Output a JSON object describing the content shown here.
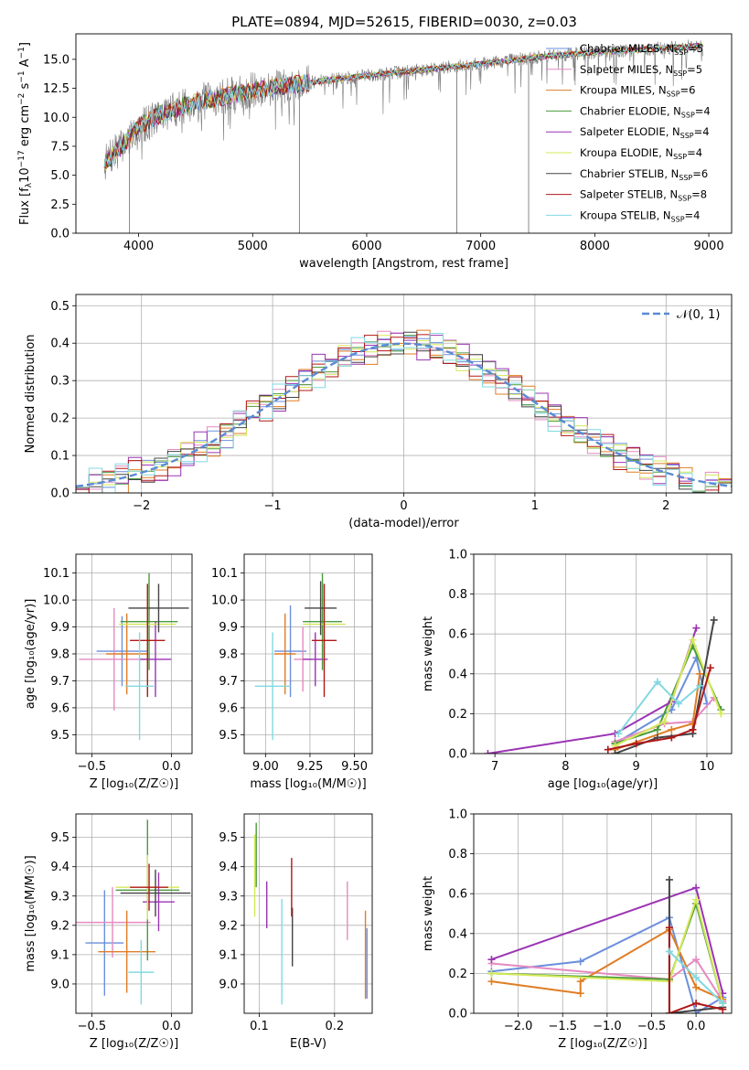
{
  "title": "PLATE=0894, MJD=52615, FIBERID=0030, z=0.03",
  "colors": {
    "Chabrier MILES": "#6a8fdc",
    "Salpeter MILES": "#e58ac0",
    "Kroupa MILES": "#e07d24",
    "Chabrier ELODIE": "#4c9a3c",
    "Salpeter ELODIE": "#9c34b4",
    "Kroupa ELODIE": "#d4e85a",
    "Chabrier STELIB": "#444444",
    "Salpeter STELIB": "#b01818",
    "Kroupa STELIB": "#82d8e0",
    "data": "#7a7a7a",
    "normal": "#5a8ad4",
    "grid": "#b0b0b0"
  },
  "chart_data": [
    {
      "id": "spectrum",
      "type": "line",
      "xlabel": "wavelength [Angstrom, rest frame]",
      "ylabel_pre": "Flux [f",
      "ylabel_sub": "λ",
      "ylabel_mid": "10",
      "ylabel_sup": "−17",
      "ylabel_post": " erg cm",
      "ylabel_sup2": "−2",
      "ylabel_post2": " s",
      "ylabel_sup3": "−1",
      "ylabel_post3": " A",
      "ylabel_sup4": "−1",
      "ylabel_end": "]",
      "xlim": [
        3450,
        9200
      ],
      "ylim": [
        0,
        17.2
      ],
      "xticks": [
        4000,
        5000,
        6000,
        7000,
        8000,
        9000
      ],
      "yticks": [
        0.0,
        2.5,
        5.0,
        7.5,
        10.0,
        12.5,
        15.0
      ],
      "legend_position": "upper right",
      "legend": [
        {
          "model": "Chabrier MILES",
          "n": "5"
        },
        {
          "model": "Salpeter MILES",
          "n": "5"
        },
        {
          "model": "Kroupa MILES",
          "n": "6"
        },
        {
          "model": "Chabrier ELODIE",
          "n": "4"
        },
        {
          "model": "Salpeter ELODIE",
          "n": "4"
        },
        {
          "model": "Kroupa ELODIE",
          "n": "4"
        },
        {
          "model": "Chabrier STELIB",
          "n": "6"
        },
        {
          "model": "Salpeter STELIB",
          "n": "8"
        },
        {
          "model": "Kroupa STELIB",
          "n": "4"
        }
      ],
      "legend_nssp_label": "N",
      "legend_nssp_sub": "SSP",
      "continuum": [
        [
          3700,
          6.0
        ],
        [
          3850,
          7.5
        ],
        [
          4000,
          9.2
        ],
        [
          4200,
          10.3
        ],
        [
          4500,
          11.3
        ],
        [
          5000,
          12.3
        ],
        [
          5500,
          13.0
        ],
        [
          6000,
          13.6
        ],
        [
          6500,
          14.1
        ],
        [
          7000,
          14.6
        ],
        [
          7500,
          15.2
        ],
        [
          8000,
          15.6
        ],
        [
          8500,
          15.9
        ],
        [
          8950,
          16.2
        ]
      ],
      "spikes_down": [
        [
          3920,
          0.0
        ],
        [
          5410,
          0.0
        ],
        [
          6790,
          0.0
        ],
        [
          7420,
          0.0
        ]
      ]
    },
    {
      "id": "residuals",
      "type": "histogram",
      "xlabel": "(data-model)/error",
      "ylabel": "Normed distribution",
      "xlim": [
        -2.5,
        2.5
      ],
      "ylim": [
        0,
        0.53
      ],
      "xticks": [
        -2,
        -1,
        0,
        1,
        2
      ],
      "xtick_labels": [
        "−2",
        "−1",
        "0",
        "1",
        "2"
      ],
      "yticks": [
        0.0,
        0.1,
        0.2,
        0.3,
        0.4,
        0.5
      ],
      "bin_width": 0.1,
      "normal_label": "𝒩(0, 1)",
      "legend_position": "upper right",
      "series": [
        {
          "model": "Chabrier MILES",
          "jitter": 0.9
        },
        {
          "model": "Salpeter MILES",
          "jitter": 1.1
        },
        {
          "model": "Kroupa MILES",
          "jitter": 1.3
        },
        {
          "model": "Chabrier ELODIE",
          "jitter": 0.8
        },
        {
          "model": "Salpeter ELODIE",
          "jitter": 1.4
        },
        {
          "model": "Kroupa ELODIE",
          "jitter": 1.0
        },
        {
          "model": "Chabrier STELIB",
          "jitter": 0.9
        },
        {
          "model": "Salpeter STELIB",
          "jitter": 1.2
        },
        {
          "model": "Kroupa STELIB",
          "jitter": 1.2
        }
      ]
    },
    {
      "id": "z-age",
      "type": "errorbar",
      "xlabel": "Z [log₁₀(Z/Z☉)]",
      "ylabel": "age  [log₁₀(age/yr)]",
      "xlim": [
        -0.6,
        0.13
      ],
      "ylim": [
        9.43,
        10.17
      ],
      "xticks": [
        -0.5,
        0.0
      ],
      "xtick_labels": [
        "−0.5",
        "0.0"
      ],
      "yticks": [
        9.5,
        9.6,
        9.7,
        9.8,
        9.9,
        10.0,
        10.1
      ],
      "points": [
        {
          "model": "Chabrier MILES",
          "x": -0.31,
          "xerr": 0.16,
          "y": 9.81,
          "yerr": 0.13
        },
        {
          "model": "Salpeter MILES",
          "x": -0.36,
          "xerr": 0.22,
          "y": 9.78,
          "yerr": 0.19
        },
        {
          "model": "Kroupa MILES",
          "x": -0.28,
          "xerr": 0.13,
          "y": 9.8,
          "yerr": 0.15
        },
        {
          "model": "Chabrier ELODIE",
          "x": -0.14,
          "xerr": 0.18,
          "y": 9.92,
          "yerr": 0.18
        },
        {
          "model": "Salpeter ELODIE",
          "x": -0.1,
          "xerr": 0.1,
          "y": 9.78,
          "yerr": 0.14
        },
        {
          "model": "Kroupa ELODIE",
          "x": -0.15,
          "xerr": 0.18,
          "y": 9.91,
          "yerr": 0.15
        },
        {
          "model": "Chabrier STELIB",
          "x": -0.08,
          "xerr": 0.19,
          "y": 9.97,
          "yerr": 0.09
        },
        {
          "model": "Salpeter STELIB",
          "x": -0.15,
          "xerr": 0.11,
          "y": 9.85,
          "yerr": 0.21
        },
        {
          "model": "Kroupa STELIB",
          "x": -0.2,
          "xerr": 0.09,
          "y": 9.68,
          "yerr": 0.2
        }
      ]
    },
    {
      "id": "mass-age",
      "type": "errorbar",
      "xlabel": "mass [log₁₀(M/M☉)]",
      "ylabel": "",
      "xlim": [
        8.88,
        9.6
      ],
      "ylim": [
        9.43,
        10.17
      ],
      "xticks": [
        9.0,
        9.25,
        9.5
      ],
      "xtick_labels": [
        "9.00",
        "9.25",
        "9.50"
      ],
      "yticks": [
        9.5,
        9.6,
        9.7,
        9.8,
        9.9,
        10.0,
        10.1
      ],
      "points": [
        {
          "model": "Chabrier MILES",
          "x": 9.14,
          "xerr": 0.09,
          "y": 9.81,
          "yerr": 0.17
        },
        {
          "model": "Salpeter MILES",
          "x": 9.21,
          "xerr": 0.05,
          "y": 9.78,
          "yerr": 0.12
        },
        {
          "model": "Kroupa MILES",
          "x": 9.11,
          "xerr": 0.06,
          "y": 9.8,
          "yerr": 0.15
        },
        {
          "model": "Chabrier ELODIE",
          "x": 9.32,
          "xerr": 0.11,
          "y": 9.92,
          "yerr": 0.18
        },
        {
          "model": "Salpeter ELODIE",
          "x": 9.28,
          "xerr": 0.07,
          "y": 9.78,
          "yerr": 0.1
        },
        {
          "model": "Kroupa ELODIE",
          "x": 9.33,
          "xerr": 0.12,
          "y": 9.91,
          "yerr": 0.15
        },
        {
          "model": "Chabrier STELIB",
          "x": 9.31,
          "xerr": 0.09,
          "y": 9.97,
          "yerr": 0.1
        },
        {
          "model": "Salpeter STELIB",
          "x": 9.33,
          "xerr": 0.07,
          "y": 9.85,
          "yerr": 0.21
        },
        {
          "model": "Kroupa STELIB",
          "x": 9.04,
          "xerr": 0.1,
          "y": 9.68,
          "yerr": 0.2
        }
      ]
    },
    {
      "id": "age-weight",
      "type": "line",
      "xlabel": "age  [log₁₀(age/yr)]",
      "ylabel": "mass weight",
      "xlim": [
        6.7,
        10.35
      ],
      "ylim": [
        0,
        1
      ],
      "xticks": [
        7,
        8,
        9,
        10
      ],
      "yticks": [
        0.0,
        0.2,
        0.4,
        0.6,
        0.8,
        1.0
      ],
      "series": [
        {
          "model": "Chabrier MILES",
          "points": [
            [
              8.7,
              0.05
            ],
            [
              9.5,
              0.22
            ],
            [
              9.85,
              0.48
            ],
            [
              10.0,
              0.25
            ]
          ]
        },
        {
          "model": "Salpeter MILES",
          "points": [
            [
              8.7,
              0.06
            ],
            [
              9.4,
              0.15
            ],
            [
              9.8,
              0.16
            ],
            [
              10.1,
              0.28
            ]
          ]
        },
        {
          "model": "Kroupa MILES",
          "points": [
            [
              8.7,
              0.02
            ],
            [
              9.5,
              0.12
            ],
            [
              9.8,
              0.15
            ],
            [
              9.9,
              0.4
            ]
          ]
        },
        {
          "model": "Chabrier ELODIE",
          "points": [
            [
              8.7,
              0.05
            ],
            [
              9.3,
              0.12
            ],
            [
              9.8,
              0.54
            ],
            [
              10.2,
              0.22
            ]
          ]
        },
        {
          "model": "Salpeter ELODIE",
          "points": [
            [
              6.9,
              0.0
            ],
            [
              8.7,
              0.1
            ],
            [
              9.5,
              0.26
            ],
            [
              9.85,
              0.63
            ]
          ]
        },
        {
          "model": "Kroupa ELODIE",
          "points": [
            [
              8.7,
              0.04
            ],
            [
              9.4,
              0.16
            ],
            [
              9.8,
              0.57
            ],
            [
              10.2,
              0.2
            ]
          ]
        },
        {
          "model": "Chabrier STELIB",
          "points": [
            [
              8.7,
              0.0
            ],
            [
              9.3,
              0.08
            ],
            [
              9.8,
              0.1
            ],
            [
              10.1,
              0.67
            ]
          ]
        },
        {
          "model": "Salpeter STELIB",
          "points": [
            [
              8.6,
              0.02
            ],
            [
              9.0,
              0.05
            ],
            [
              9.5,
              0.08
            ],
            [
              9.8,
              0.12
            ],
            [
              10.05,
              0.43
            ]
          ]
        },
        {
          "model": "Kroupa STELIB",
          "points": [
            [
              8.75,
              0.1
            ],
            [
              9.3,
              0.36
            ],
            [
              9.6,
              0.25
            ],
            [
              9.9,
              0.34
            ]
          ]
        }
      ]
    },
    {
      "id": "z-mass",
      "type": "errorbar",
      "xlabel": "Z [log₁₀(Z/Z☉)]",
      "ylabel": "mass [log₁₀(M/M☉)]",
      "xlim": [
        -0.6,
        0.13
      ],
      "ylim": [
        8.9,
        9.58
      ],
      "xticks": [
        -0.5,
        0.0
      ],
      "xtick_labels": [
        "−0.5",
        "0.0"
      ],
      "yticks": [
        9.0,
        9.1,
        9.2,
        9.3,
        9.4,
        9.5
      ],
      "points": [
        {
          "model": "Chabrier MILES",
          "x": -0.42,
          "xerr": 0.12,
          "y": 9.14,
          "yerr": 0.18
        },
        {
          "model": "Salpeter MILES",
          "x": -0.37,
          "xerr": 0.24,
          "y": 9.21,
          "yerr": 0.12
        },
        {
          "model": "Kroupa MILES",
          "x": -0.28,
          "xerr": 0.18,
          "y": 9.11,
          "yerr": 0.14
        },
        {
          "model": "Chabrier ELODIE",
          "x": -0.15,
          "xerr": 0.2,
          "y": 9.32,
          "yerr": 0.24
        },
        {
          "model": "Salpeter ELODIE",
          "x": -0.08,
          "xerr": 0.1,
          "y": 9.28,
          "yerr": 0.1
        },
        {
          "model": "Kroupa ELODIE",
          "x": -0.15,
          "xerr": 0.2,
          "y": 9.33,
          "yerr": 0.11
        },
        {
          "model": "Chabrier STELIB",
          "x": -0.1,
          "xerr": 0.22,
          "y": 9.31,
          "yerr": 0.08
        },
        {
          "model": "Salpeter STELIB",
          "x": -0.14,
          "xerr": 0.12,
          "y": 9.33,
          "yerr": 0.08
        },
        {
          "model": "Kroupa STELIB",
          "x": -0.19,
          "xerr": 0.08,
          "y": 9.04,
          "yerr": 0.11
        }
      ]
    },
    {
      "id": "ebv-mass",
      "type": "errorbar",
      "xlabel": "E(B-V)",
      "ylabel": "",
      "xlim": [
        0.08,
        0.25
      ],
      "ylim": [
        8.9,
        9.58
      ],
      "xticks": [
        0.1,
        0.2
      ],
      "xtick_labels": [
        "0.1",
        "0.2"
      ],
      "yticks": [
        9.0,
        9.1,
        9.2,
        9.3,
        9.4,
        9.5
      ],
      "points": [
        {
          "model": "Chabrier MILES",
          "x": 0.243,
          "xerr": 0.0,
          "y": 9.07,
          "yerr": 0.12
        },
        {
          "model": "Salpeter MILES",
          "x": 0.217,
          "xerr": 0.0,
          "y": 9.25,
          "yerr": 0.1
        },
        {
          "model": "Kroupa MILES",
          "x": 0.241,
          "xerr": 0.0,
          "y": 9.1,
          "yerr": 0.15
        },
        {
          "model": "Chabrier ELODIE",
          "x": 0.096,
          "xerr": 0.0,
          "y": 9.44,
          "yerr": 0.11
        },
        {
          "model": "Salpeter ELODIE",
          "x": 0.11,
          "xerr": 0.0,
          "y": 9.27,
          "yerr": 0.08
        },
        {
          "model": "Kroupa ELODIE",
          "x": 0.094,
          "xerr": 0.0,
          "y": 9.37,
          "yerr": 0.14
        },
        {
          "model": "Chabrier STELIB",
          "x": 0.144,
          "xerr": 0.0,
          "y": 9.16,
          "yerr": 0.1
        },
        {
          "model": "Salpeter STELIB",
          "x": 0.143,
          "xerr": 0.0,
          "y": 9.33,
          "yerr": 0.1
        },
        {
          "model": "Kroupa STELIB",
          "x": 0.13,
          "xerr": 0.0,
          "y": 9.11,
          "yerr": 0.18
        }
      ]
    },
    {
      "id": "z-weight",
      "type": "line",
      "xlabel": "Z [log₁₀(Z/Z☉)]",
      "ylabel": "mass weight",
      "xlim": [
        -2.5,
        0.4
      ],
      "ylim": [
        0,
        1
      ],
      "xticks": [
        -2.0,
        -1.5,
        -1.0,
        -0.5,
        0.0
      ],
      "xtick_labels": [
        "−2.0",
        "−1.5",
        "−1.0",
        "−0.5",
        "0.0"
      ],
      "yticks": [
        0.0,
        0.2,
        0.4,
        0.6,
        0.8,
        1.0
      ],
      "series": [
        {
          "model": "Chabrier MILES",
          "points": [
            [
              -2.3,
              0.21
            ],
            [
              -1.3,
              0.26
            ],
            [
              -0.3,
              0.48
            ],
            [
              0.0,
              0.0
            ],
            [
              0.3,
              0.08
            ]
          ]
        },
        {
          "model": "Salpeter MILES",
          "points": [
            [
              -2.3,
              0.25
            ],
            [
              -0.3,
              0.17
            ],
            [
              0.0,
              0.27
            ],
            [
              0.3,
              0.06
            ]
          ]
        },
        {
          "model": "Kroupa MILES",
          "points": [
            [
              -2.3,
              0.16
            ],
            [
              -1.3,
              0.1
            ],
            [
              -1.3,
              0.16
            ],
            [
              -0.3,
              0.42
            ],
            [
              0.0,
              0.13
            ],
            [
              0.3,
              0.07
            ]
          ]
        },
        {
          "model": "Chabrier ELODIE",
          "points": [
            [
              -2.3,
              0.2
            ],
            [
              -0.3,
              0.17
            ],
            [
              0.0,
              0.55
            ],
            [
              0.3,
              0.05
            ]
          ]
        },
        {
          "model": "Salpeter ELODIE",
          "points": [
            [
              -2.3,
              0.27
            ],
            [
              0.0,
              0.63
            ],
            [
              0.3,
              0.1
            ]
          ]
        },
        {
          "model": "Kroupa ELODIE",
          "points": [
            [
              -2.3,
              0.2
            ],
            [
              -0.3,
              0.16
            ],
            [
              0.0,
              0.57
            ],
            [
              0.3,
              0.05
            ]
          ]
        },
        {
          "model": "Chabrier STELIB",
          "points": [
            [
              -0.3,
              0.67
            ],
            [
              -0.3,
              0.0
            ],
            [
              0.3,
              0.03
            ]
          ]
        },
        {
          "model": "Salpeter STELIB",
          "points": [
            [
              -0.3,
              0.43
            ],
            [
              -0.3,
              0.0
            ],
            [
              0.0,
              0.05
            ],
            [
              0.3,
              0.02
            ]
          ]
        },
        {
          "model": "Kroupa STELIB",
          "points": [
            [
              -0.3,
              0.31
            ],
            [
              0.0,
              0.18
            ],
            [
              0.3,
              0.05
            ]
          ]
        }
      ]
    }
  ]
}
